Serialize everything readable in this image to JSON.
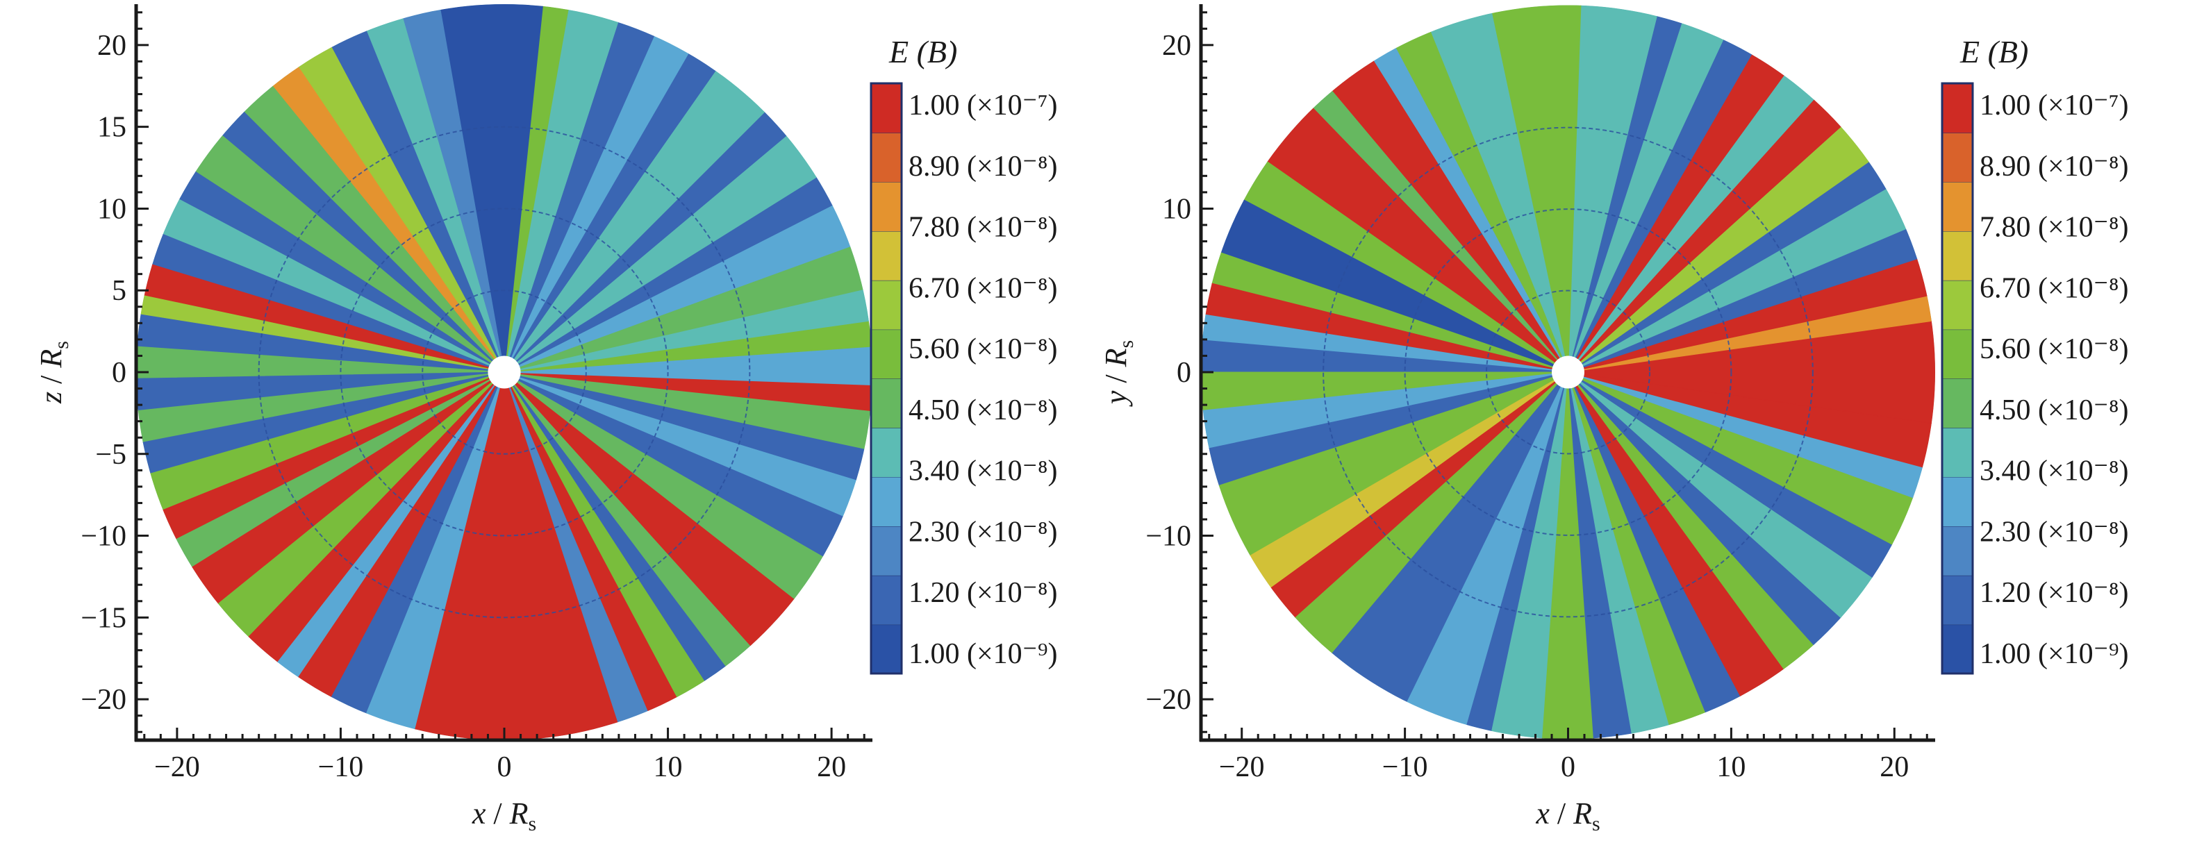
{
  "colors": {
    "levels": [
      "#2a52a6",
      "#3a66b3",
      "#4d86c4",
      "#5aa8d4",
      "#5cbcb4",
      "#66b860",
      "#79bd3c",
      "#9cc93c",
      "#d2c137",
      "#e4932f",
      "#d9622b",
      "#cf2b24"
    ],
    "background": "#ffffff",
    "axis": "#1a1a1a"
  },
  "chart_data": [
    {
      "type": "heatmap",
      "panel": "left",
      "xlabel": {
        "var": "x",
        "sep": " / ",
        "unit": "R",
        "sub": "s"
      },
      "ylabel": {
        "var": "z",
        "sep": " / ",
        "unit": "R",
        "sub": "s"
      },
      "xlim": [
        -22.5,
        22.5
      ],
      "ylim": [
        -22.5,
        22.5
      ],
      "domain_radius": 22.5,
      "inner_radius": 1,
      "ring_radii": [
        5,
        10,
        15
      ],
      "xticks": [
        -20,
        -10,
        0,
        10,
        20
      ],
      "xtick_labels": [
        "−20",
        "−10",
        "0",
        "10",
        "20"
      ],
      "yticks": [
        20,
        15,
        10,
        5,
        0,
        -5,
        -10,
        -15,
        -20
      ],
      "ytick_labels": [
        "20",
        "15",
        "10",
        "5",
        "0",
        "−5",
        "−10",
        "−15",
        "−20"
      ],
      "colorbar": {
        "title": "E (B)",
        "labels": [
          "1.00 (×10⁻⁷)",
          "8.90 (×10⁻⁸)",
          "7.80 (×10⁻⁸)",
          "6.70 (×10⁻⁸)",
          "5.60 (×10⁻⁸)",
          "4.50 (×10⁻⁸)",
          "3.40 (×10⁻⁸)",
          "2.30 (×10⁻⁸)",
          "1.20 (×10⁻⁸)",
          "1.00 (×10⁻⁹)"
        ]
      },
      "sectors": [
        {
          "a1": 0,
          "a2": 4,
          "level": 3
        },
        {
          "a1": 4,
          "a2": 8,
          "level": 6
        },
        {
          "a1": 8,
          "a2": 13,
          "level": 4
        },
        {
          "a1": 13,
          "a2": 20,
          "level": 5
        },
        {
          "a1": 20,
          "a2": 27,
          "level": 3
        },
        {
          "a1": 27,
          "a2": 32,
          "level": 1
        },
        {
          "a1": 32,
          "a2": 40,
          "level": 4
        },
        {
          "a1": 40,
          "a2": 45,
          "level": 1
        },
        {
          "a1": 45,
          "a2": 55,
          "level": 4
        },
        {
          "a1": 55,
          "a2": 60,
          "level": 1
        },
        {
          "a1": 60,
          "a2": 66,
          "level": 3
        },
        {
          "a1": 66,
          "a2": 72,
          "level": 1
        },
        {
          "a1": 72,
          "a2": 80,
          "level": 4
        },
        {
          "a1": 80,
          "a2": 84,
          "level": 6
        },
        {
          "a1": 84,
          "a2": 100,
          "level": 0
        },
        {
          "a1": 100,
          "a2": 106,
          "level": 2
        },
        {
          "a1": 106,
          "a2": 112,
          "level": 4
        },
        {
          "a1": 112,
          "a2": 118,
          "level": 1
        },
        {
          "a1": 118,
          "a2": 124,
          "level": 7
        },
        {
          "a1": 124,
          "a2": 129,
          "level": 9
        },
        {
          "a1": 129,
          "a2": 135,
          "level": 5
        },
        {
          "a1": 135,
          "a2": 140,
          "level": 1
        },
        {
          "a1": 140,
          "a2": 147,
          "level": 5
        },
        {
          "a1": 147,
          "a2": 152,
          "level": 1
        },
        {
          "a1": 152,
          "a2": 158,
          "level": 4
        },
        {
          "a1": 158,
          "a2": 163,
          "level": 1
        },
        {
          "a1": 163,
          "a2": 168,
          "level": 11
        },
        {
          "a1": 168,
          "a2": 171,
          "level": 7
        },
        {
          "a1": 171,
          "a2": 176,
          "level": 1
        },
        {
          "a1": 176,
          "a2": 181,
          "level": 5
        },
        {
          "a1": 181,
          "a2": 186,
          "level": 1
        },
        {
          "a1": 186,
          "a2": 191,
          "level": 5
        },
        {
          "a1": 191,
          "a2": 196,
          "level": 1
        },
        {
          "a1": 196,
          "a2": 202,
          "level": 6
        },
        {
          "a1": 202,
          "a2": 207,
          "level": 11
        },
        {
          "a1": 207,
          "a2": 212,
          "level": 5
        },
        {
          "a1": 212,
          "a2": 219,
          "level": 11
        },
        {
          "a1": 219,
          "a2": 226,
          "level": 6
        },
        {
          "a1": 226,
          "a2": 232,
          "level": 11
        },
        {
          "a1": 232,
          "a2": 236,
          "level": 3
        },
        {
          "a1": 236,
          "a2": 242,
          "level": 11
        },
        {
          "a1": 242,
          "a2": 248,
          "level": 1
        },
        {
          "a1": 248,
          "a2": 256,
          "level": 3
        },
        {
          "a1": 256,
          "a2": 288,
          "level": 11
        },
        {
          "a1": 288,
          "a2": 293,
          "level": 2
        },
        {
          "a1": 293,
          "a2": 298,
          "level": 11
        },
        {
          "a1": 298,
          "a2": 303,
          "level": 6
        },
        {
          "a1": 303,
          "a2": 307,
          "level": 1
        },
        {
          "a1": 307,
          "a2": 312,
          "level": 5
        },
        {
          "a1": 312,
          "a2": 322,
          "level": 11
        },
        {
          "a1": 322,
          "a2": 330,
          "level": 5
        },
        {
          "a1": 330,
          "a2": 337,
          "level": 1
        },
        {
          "a1": 337,
          "a2": 343,
          "level": 3
        },
        {
          "a1": 343,
          "a2": 348,
          "level": 1
        },
        {
          "a1": 348,
          "a2": 354,
          "level": 5
        },
        {
          "a1": 354,
          "a2": 358,
          "level": 11
        },
        {
          "a1": 358,
          "a2": 360,
          "level": 3
        }
      ]
    },
    {
      "type": "heatmap",
      "panel": "right",
      "xlabel": {
        "var": "x",
        "sep": " / ",
        "unit": "R",
        "sub": "s"
      },
      "ylabel": {
        "var": "y",
        "sep": " / ",
        "unit": "R",
        "sub": "s"
      },
      "xlim": [
        -22.5,
        22.5
      ],
      "ylim": [
        -22.5,
        22.5
      ],
      "domain_radius": 22.5,
      "inner_radius": 1,
      "ring_radii": [
        5,
        10,
        15
      ],
      "xticks": [
        -20,
        -10,
        0,
        10,
        20
      ],
      "xtick_labels": [
        "−20",
        "−10",
        "0",
        "10",
        "20"
      ],
      "yticks": [
        20,
        10,
        0,
        -10,
        -20
      ],
      "ytick_labels": [
        "20",
        "10",
        "0",
        "−10",
        "−20"
      ],
      "colorbar": {
        "title": "E (B)",
        "labels": [
          "1.00 (×10⁻⁷)",
          "8.90 (×10⁻⁸)",
          "7.80 (×10⁻⁸)",
          "6.70 (×10⁻⁸)",
          "5.60 (×10⁻⁸)",
          "4.50 (×10⁻⁸)",
          "3.40 (×10⁻⁸)",
          "2.30 (×10⁻⁸)",
          "1.20 (×10⁻⁸)",
          "1.00 (×10⁻⁹)"
        ]
      },
      "sectors": [
        {
          "a1": 0,
          "a2": 8,
          "level": 11
        },
        {
          "a1": 8,
          "a2": 12,
          "level": 9
        },
        {
          "a1": 12,
          "a2": 18,
          "level": 11
        },
        {
          "a1": 18,
          "a2": 23,
          "level": 1
        },
        {
          "a1": 23,
          "a2": 30,
          "level": 4
        },
        {
          "a1": 30,
          "a2": 35,
          "level": 1
        },
        {
          "a1": 35,
          "a2": 42,
          "level": 7
        },
        {
          "a1": 42,
          "a2": 48,
          "level": 11
        },
        {
          "a1": 48,
          "a2": 54,
          "level": 4
        },
        {
          "a1": 54,
          "a2": 60,
          "level": 11
        },
        {
          "a1": 60,
          "a2": 65,
          "level": 1
        },
        {
          "a1": 65,
          "a2": 72,
          "level": 4
        },
        {
          "a1": 72,
          "a2": 76,
          "level": 1
        },
        {
          "a1": 76,
          "a2": 88,
          "level": 4
        },
        {
          "a1": 88,
          "a2": 102,
          "level": 6
        },
        {
          "a1": 102,
          "a2": 112,
          "level": 4
        },
        {
          "a1": 112,
          "a2": 118,
          "level": 6
        },
        {
          "a1": 118,
          "a2": 122,
          "level": 3
        },
        {
          "a1": 122,
          "a2": 130,
          "level": 11
        },
        {
          "a1": 130,
          "a2": 134,
          "level": 5
        },
        {
          "a1": 134,
          "a2": 145,
          "level": 11
        },
        {
          "a1": 145,
          "a2": 152,
          "level": 6
        },
        {
          "a1": 152,
          "a2": 161,
          "level": 0
        },
        {
          "a1": 161,
          "a2": 166,
          "level": 6
        },
        {
          "a1": 166,
          "a2": 171,
          "level": 11
        },
        {
          "a1": 171,
          "a2": 175,
          "level": 3
        },
        {
          "a1": 175,
          "a2": 180,
          "level": 1
        },
        {
          "a1": 180,
          "a2": 186,
          "level": 6
        },
        {
          "a1": 186,
          "a2": 192,
          "level": 3
        },
        {
          "a1": 192,
          "a2": 198,
          "level": 1
        },
        {
          "a1": 198,
          "a2": 210,
          "level": 6
        },
        {
          "a1": 210,
          "a2": 216,
          "level": 8
        },
        {
          "a1": 216,
          "a2": 222,
          "level": 11
        },
        {
          "a1": 222,
          "a2": 230,
          "level": 6
        },
        {
          "a1": 230,
          "a2": 244,
          "level": 1
        },
        {
          "a1": 244,
          "a2": 254,
          "level": 3
        },
        {
          "a1": 254,
          "a2": 258,
          "level": 1
        },
        {
          "a1": 258,
          "a2": 266,
          "level": 4
        },
        {
          "a1": 266,
          "a2": 274,
          "level": 6
        },
        {
          "a1": 274,
          "a2": 280,
          "level": 1
        },
        {
          "a1": 280,
          "a2": 286,
          "level": 4
        },
        {
          "a1": 286,
          "a2": 292,
          "level": 6
        },
        {
          "a1": 292,
          "a2": 298,
          "level": 1
        },
        {
          "a1": 298,
          "a2": 306,
          "level": 11
        },
        {
          "a1": 306,
          "a2": 312,
          "level": 6
        },
        {
          "a1": 312,
          "a2": 318,
          "level": 1
        },
        {
          "a1": 318,
          "a2": 326,
          "level": 4
        },
        {
          "a1": 326,
          "a2": 332,
          "level": 1
        },
        {
          "a1": 332,
          "a2": 340,
          "level": 6
        },
        {
          "a1": 340,
          "a2": 345,
          "level": 3
        },
        {
          "a1": 345,
          "a2": 352,
          "level": 11
        },
        {
          "a1": 352,
          "a2": 360,
          "level": 11
        }
      ]
    }
  ]
}
